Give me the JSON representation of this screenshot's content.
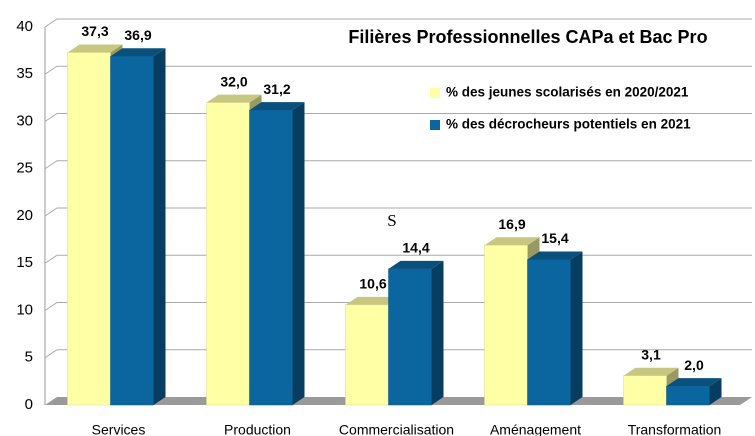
{
  "chart_data": {
    "type": "bar3d",
    "title": "Filières Professionnelles CAPa et Bac Pro",
    "categories": [
      "Services",
      "Production",
      "Commercialisation",
      "Aménagement",
      "Transformation"
    ],
    "series": [
      {
        "name": "% des jeunes scolarisés en 2020/2021",
        "color": "#ffffa6",
        "values": [
          37.3,
          32.0,
          10.6,
          16.9,
          3.1
        ],
        "value_labels": [
          "37,3",
          "32,0",
          "10,6",
          "16,9",
          "3,1"
        ]
      },
      {
        "name": "% des décrocheurs potentiels en 2021",
        "color": "#0b66a0",
        "values": [
          36.9,
          31.2,
          14.4,
          15.4,
          2.0
        ],
        "value_labels": [
          "36,9",
          "31,2",
          "14,4",
          "15,4",
          "2,0"
        ]
      }
    ],
    "annotations": [
      "S"
    ],
    "ylim": [
      0,
      40
    ],
    "yticks": [
      0,
      5,
      10,
      15,
      20,
      25,
      30,
      35,
      40
    ],
    "grid": true,
    "legend": "top-right"
  }
}
